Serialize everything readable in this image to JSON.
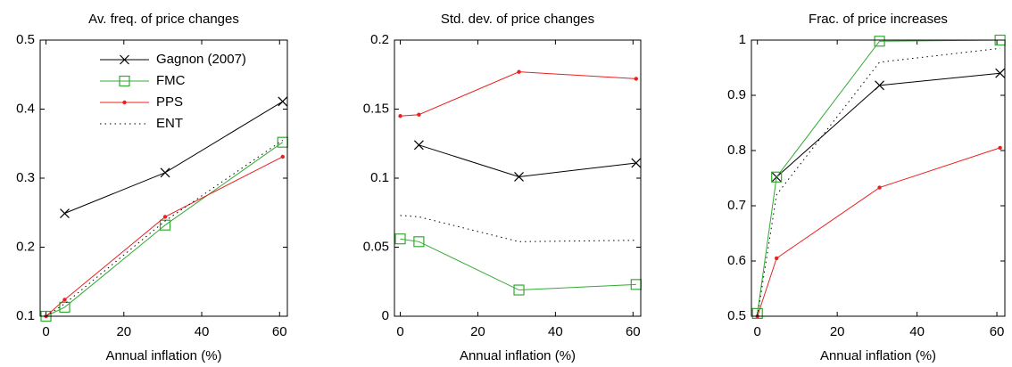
{
  "chart_data": [
    {
      "type": "line",
      "title": "Av. freq. of price changes",
      "xlabel": "Annual inflation (%)",
      "x": [
        0,
        4.8,
        30.6,
        60.8
      ],
      "xlim": [
        -1.5,
        62
      ],
      "xticks": [
        0,
        20,
        40,
        60
      ],
      "ylim": [
        0.1,
        0.5
      ],
      "yticks": [
        0.1,
        0.2,
        0.3,
        0.4,
        0.5
      ],
      "legend": "upper right",
      "series": [
        {
          "name": "Gagnon (2007)",
          "color": "#000000",
          "marker": "x",
          "dash": "solid",
          "values": [
            null,
            0.249,
            0.308,
            0.411
          ]
        },
        {
          "name": "FMC",
          "color": "#33aa33",
          "marker": "square",
          "dash": "solid",
          "values": [
            0.1,
            0.113,
            0.232,
            0.352
          ]
        },
        {
          "name": "PPS",
          "color": "#e8201e",
          "marker": "dot",
          "dash": "solid",
          "values": [
            0.1,
            0.124,
            0.244,
            0.331
          ]
        },
        {
          "name": "ENT",
          "color": "#000000",
          "marker": "none",
          "dash": "dotted",
          "values": [
            0.1,
            0.118,
            0.238,
            0.355
          ]
        }
      ]
    },
    {
      "type": "line",
      "title": "Std. dev. of price changes",
      "xlabel": "Annual inflation (%)",
      "x": [
        0,
        4.8,
        30.6,
        60.8
      ],
      "xlim": [
        -1.5,
        62
      ],
      "xticks": [
        0,
        20,
        40,
        60
      ],
      "ylim": [
        0,
        0.2
      ],
      "yticks": [
        0,
        0.05,
        0.1,
        0.15,
        0.2
      ],
      "series": [
        {
          "name": "Gagnon (2007)",
          "color": "#000000",
          "marker": "x",
          "dash": "solid",
          "values": [
            null,
            0.124,
            0.101,
            0.111
          ]
        },
        {
          "name": "FMC",
          "color": "#33aa33",
          "marker": "square",
          "dash": "solid",
          "values": [
            0.056,
            0.054,
            0.019,
            0.023
          ]
        },
        {
          "name": "PPS",
          "color": "#e8201e",
          "marker": "dot",
          "dash": "solid",
          "values": [
            0.145,
            0.146,
            0.177,
            0.172
          ]
        },
        {
          "name": "ENT",
          "color": "#000000",
          "marker": "none",
          "dash": "dotted",
          "values": [
            0.073,
            0.072,
            0.054,
            0.055
          ]
        }
      ]
    },
    {
      "type": "line",
      "title": "Frac. of price increases",
      "xlabel": "Annual inflation (%)",
      "x": [
        0,
        4.8,
        30.6,
        60.8
      ],
      "xlim": [
        -1.5,
        62
      ],
      "xticks": [
        0,
        20,
        40,
        60
      ],
      "ylim": [
        0.5,
        1
      ],
      "yticks": [
        0.5,
        0.6,
        0.7,
        0.8,
        0.9,
        1
      ],
      "series": [
        {
          "name": "Gagnon (2007)",
          "color": "#000000",
          "marker": "x",
          "dash": "solid",
          "values": [
            null,
            0.752,
            0.918,
            0.94
          ]
        },
        {
          "name": "FMC",
          "color": "#33aa33",
          "marker": "square",
          "dash": "solid",
          "values": [
            0.505,
            0.752,
            0.998,
            1.0
          ]
        },
        {
          "name": "PPS",
          "color": "#e8201e",
          "marker": "dot",
          "dash": "solid",
          "values": [
            0.5,
            0.605,
            0.733,
            0.805
          ]
        },
        {
          "name": "ENT",
          "color": "#000000",
          "marker": "none",
          "dash": "dotted",
          "values": [
            0.5,
            0.72,
            0.96,
            0.985
          ]
        }
      ]
    }
  ]
}
